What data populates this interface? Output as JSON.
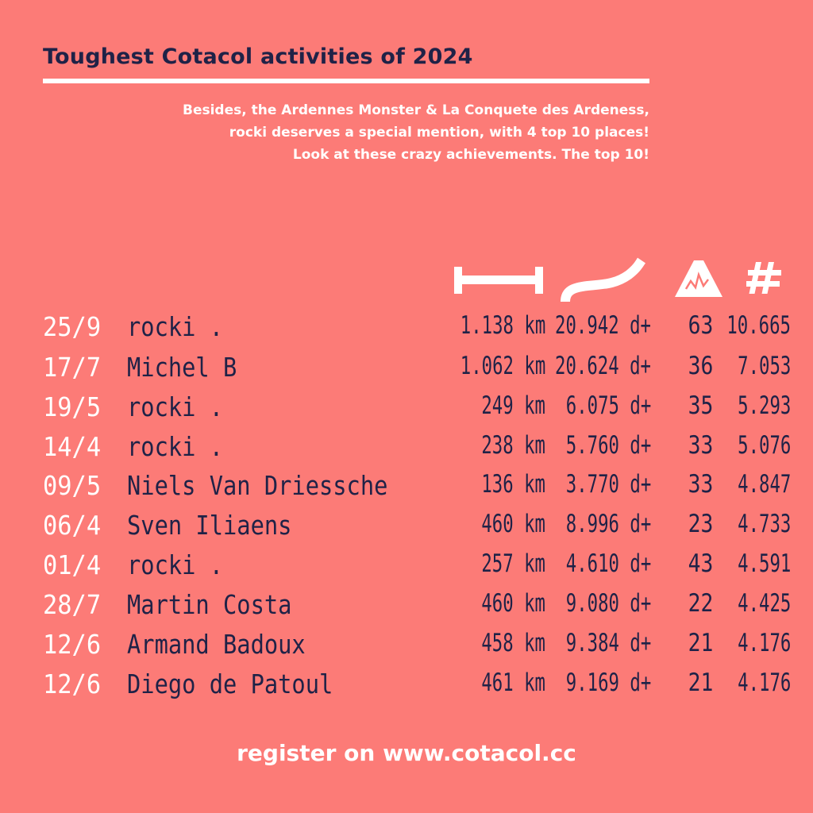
{
  "header": {
    "title": "Toughest Cotacol activities of 2024",
    "intro_lines": [
      "Besides, the Ardennes Monster & La Conquete des Ardeness,",
      "rocki deserves a special mention, with 4 top 10 places!",
      "Look at these crazy achievements. The top 10!"
    ]
  },
  "columns": {
    "distance_icon": "distance-icon",
    "elevation_icon": "elevation-road-icon",
    "cotacols_icon": "mountain-icon",
    "score_icon": "hash-icon",
    "score_label": "#"
  },
  "rows": [
    {
      "date": "25/9",
      "name": "rocki .",
      "distance": "1.138 km",
      "elevation": "20.942 d+",
      "cotacols": "63",
      "score": "10.665"
    },
    {
      "date": "17/7",
      "name": "Michel B",
      "distance": "1.062 km",
      "elevation": "20.624 d+",
      "cotacols": "36",
      "score": "7.053"
    },
    {
      "date": "19/5",
      "name": "rocki .",
      "distance": "249 km",
      "elevation": "6.075 d+",
      "cotacols": "35",
      "score": "5.293"
    },
    {
      "date": "14/4",
      "name": "rocki .",
      "distance": "238 km",
      "elevation": "5.760 d+",
      "cotacols": "33",
      "score": "5.076"
    },
    {
      "date": "09/5",
      "name": "Niels Van Driessche",
      "distance": "136 km",
      "elevation": "3.770 d+",
      "cotacols": "33",
      "score": "4.847"
    },
    {
      "date": "06/4",
      "name": "Sven Iliaens",
      "distance": "460 km",
      "elevation": "8.996 d+",
      "cotacols": "23",
      "score": "4.733"
    },
    {
      "date": "01/4",
      "name": "rocki .",
      "distance": "257 km",
      "elevation": "4.610 d+",
      "cotacols": "43",
      "score": "4.591"
    },
    {
      "date": "28/7",
      "name": "Martin Costa",
      "distance": "460 km",
      "elevation": "9.080 d+",
      "cotacols": "22",
      "score": "4.425"
    },
    {
      "date": "12/6",
      "name": "Armand Badoux",
      "distance": "458 km",
      "elevation": "9.384 d+",
      "cotacols": "21",
      "score": "4.176"
    },
    {
      "date": "12/6",
      "name": "Diego de Patoul",
      "distance": "461 km",
      "elevation": "9.169 d+",
      "cotacols": "21",
      "score": "4.176"
    }
  ],
  "footer": {
    "text": "register on www.cotacol.cc"
  },
  "colors": {
    "background": "#fc7b77",
    "ink": "#1f2247",
    "white": "#ffffff"
  }
}
